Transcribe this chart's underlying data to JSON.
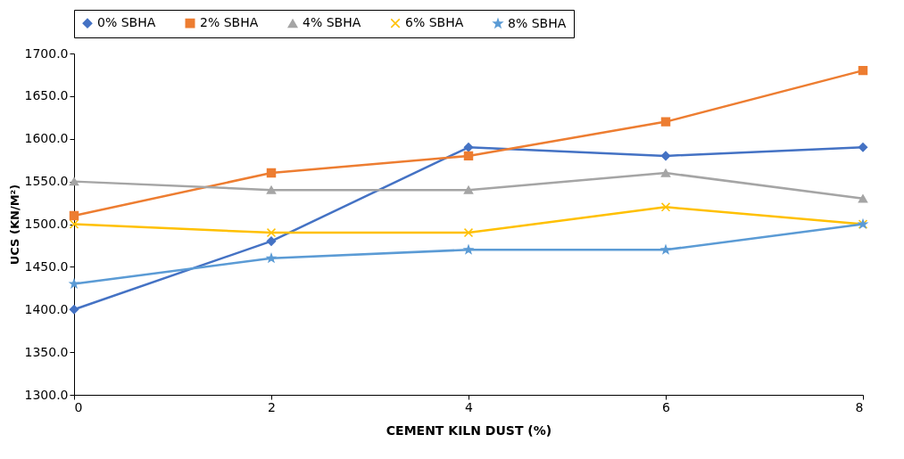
{
  "chart_data": {
    "type": "line",
    "xlabel": "CEMENT KILN DUST (%)",
    "ylabel": "UCS (KN/M²)",
    "x": [
      0,
      2,
      4,
      6,
      8
    ],
    "series": [
      {
        "name": "0% SBHA",
        "color": "#4472c4",
        "marker": "diamond",
        "values": [
          1400,
          1480,
          1590,
          1580,
          1590
        ]
      },
      {
        "name": "2% SBHA",
        "color": "#ed7d31",
        "marker": "square",
        "values": [
          1510,
          1560,
          1580,
          1620,
          1680
        ]
      },
      {
        "name": "4% SBHA",
        "color": "#a5a5a5",
        "marker": "triangle",
        "values": [
          1550,
          1540,
          1540,
          1560,
          1530
        ]
      },
      {
        "name": "6% SBHA",
        "color": "#ffc000",
        "marker": "cross",
        "values": [
          1500,
          1490,
          1490,
          1520,
          1500
        ]
      },
      {
        "name": "8% SBHA",
        "color": "#5b9bd5",
        "marker": "star",
        "values": [
          1430,
          1460,
          1470,
          1470,
          1500
        ]
      }
    ],
    "xlim": [
      0,
      8
    ],
    "xticks": [
      0,
      2,
      4,
      6,
      8
    ],
    "ylim": [
      1300,
      1700
    ],
    "yticks": [
      {
        "value": 1300,
        "label": "1300.0"
      },
      {
        "value": 1350,
        "label": "1350.0"
      },
      {
        "value": 1400,
        "label": "1400.0"
      },
      {
        "value": 1450,
        "label": "1450.0"
      },
      {
        "value": 1500,
        "label": "1500.0"
      },
      {
        "value": 1550,
        "label": "1550.0"
      },
      {
        "value": 1600,
        "label": "1600.0"
      },
      {
        "value": 1650,
        "label": "1650.0"
      },
      {
        "value": 1700,
        "label": "1700.0"
      }
    ],
    "grid": false,
    "legend": "top"
  }
}
